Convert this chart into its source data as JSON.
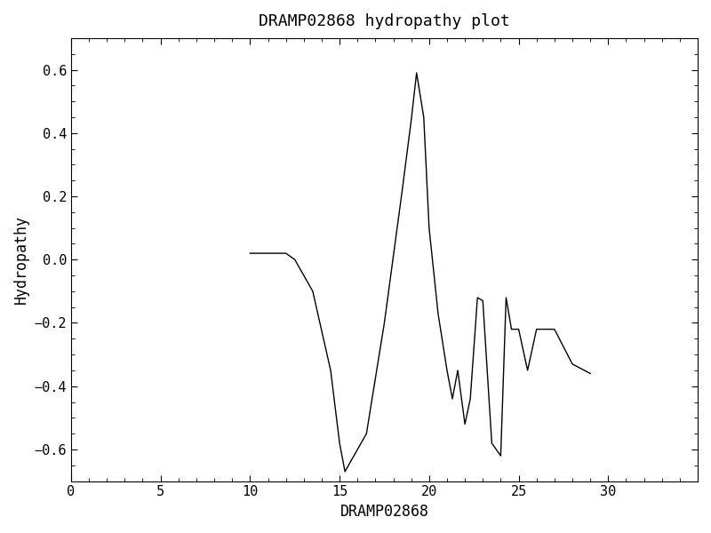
{
  "title": "DRAMP02868 hydropathy plot",
  "xlabel": "DRAMP02868",
  "ylabel": "Hydropathy",
  "xlim": [
    0,
    35
  ],
  "ylim": [
    -0.7,
    0.7
  ],
  "xticks": [
    0,
    5,
    10,
    15,
    20,
    25,
    30
  ],
  "yticks": [
    -0.6,
    -0.4,
    -0.2,
    0.0,
    0.2,
    0.4,
    0.6
  ],
  "line_color": "#000000",
  "line_width": 1.0,
  "background_color": "#ffffff",
  "x": [
    10,
    11,
    12,
    12.5,
    13.5,
    14.5,
    15,
    15.3,
    16.5,
    17.5,
    18.5,
    19,
    19.3,
    19.7,
    20,
    20.5,
    21,
    21.3,
    21.6,
    22,
    22.3,
    22.7,
    23,
    23.5,
    24,
    24.3,
    24.6,
    25,
    25.5,
    26,
    27,
    28,
    29
  ],
  "y": [
    0.02,
    0.02,
    0.02,
    0.0,
    -0.1,
    -0.35,
    -0.58,
    -0.67,
    -0.55,
    -0.2,
    0.22,
    0.44,
    0.59,
    0.45,
    0.1,
    -0.17,
    -0.35,
    -0.44,
    -0.35,
    -0.52,
    -0.44,
    -0.12,
    -0.13,
    -0.58,
    -0.62,
    -0.12,
    -0.22,
    -0.22,
    -0.35,
    -0.22,
    -0.22,
    -0.33,
    -0.36
  ],
  "title_fontsize": 13,
  "label_fontsize": 12,
  "tick_fontsize": 11,
  "font_family": "monospace"
}
